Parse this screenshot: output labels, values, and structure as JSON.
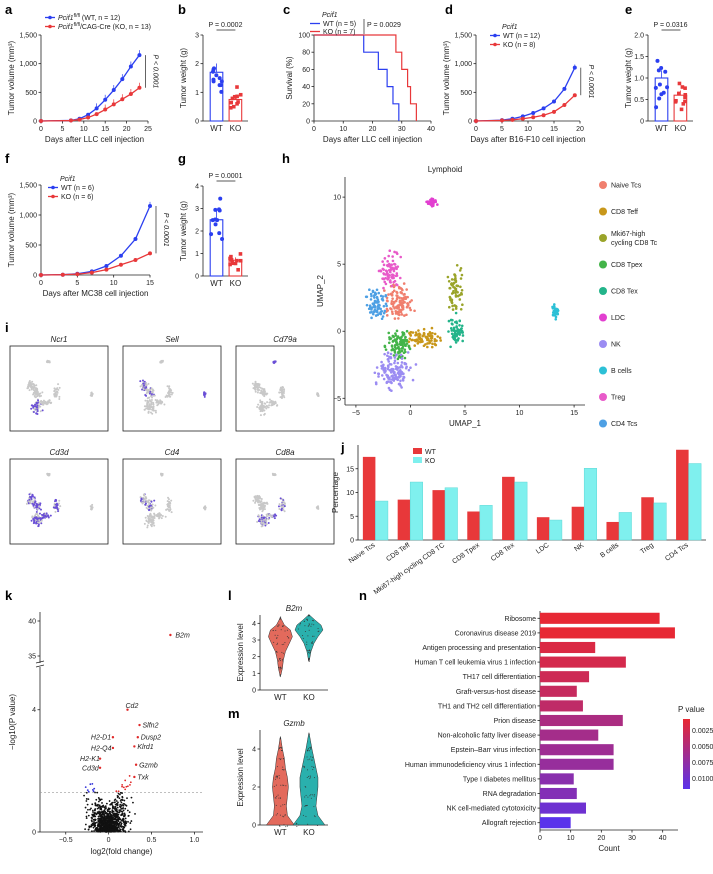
{
  "panel_letters": {
    "a": "a",
    "b": "b",
    "c": "c",
    "d": "d",
    "e": "e",
    "f": "f",
    "g": "g",
    "h": "h",
    "i": "i",
    "j": "j",
    "k": "k",
    "l": "l",
    "m": "m",
    "n": "n"
  },
  "colors": {
    "wt_blue": "#2b3ff0",
    "ko_red": "#e8383a",
    "cyan": "#7ff0ee"
  },
  "chart_data": [
    {
      "id": "a",
      "type": "line",
      "gene": "Pcif1",
      "legend": [
        "Pcif1fl/fl (WT, n = 12)",
        "Pcif1fl/fl/CAG-Cre (KO, n = 13)"
      ],
      "legend_wt_main": "Pcif1",
      "legend_wt_sup": "fl/fl",
      "legend_wt_rest": " (WT, n = 12)",
      "legend_ko_main": "Pcif1",
      "legend_ko_sup": "fl/fl",
      "legend_ko_rest": "/CAG-Cre (KO, n = 13)",
      "xlabel": "Days after LLC cell injection",
      "ylabel": "Tumor volume (mm³)",
      "xlim": [
        0,
        25
      ],
      "ylim": [
        0,
        1500
      ],
      "xticks": [
        "0",
        "5",
        "10",
        "15",
        "20",
        "25"
      ],
      "yticks": [
        "0",
        "500",
        "1,000",
        "1,500"
      ],
      "x": [
        0,
        7,
        9,
        11,
        13,
        15,
        17,
        19,
        21,
        23
      ],
      "series": [
        {
          "name": "WT",
          "values": [
            0,
            10,
            40,
            110,
            220,
            370,
            540,
            730,
            950,
            1150
          ]
        },
        {
          "name": "KO",
          "values": [
            0,
            8,
            25,
            60,
            120,
            200,
            290,
            380,
            470,
            580
          ]
        }
      ],
      "pvalue": "P < 0.0001"
    },
    {
      "id": "b",
      "type": "bar",
      "ylabel": "Tumor weight (g)",
      "categories": [
        "WT",
        "KO"
      ],
      "values": [
        1.7,
        0.75
      ],
      "ylim": [
        0,
        3
      ],
      "yticks": [
        "0",
        "1",
        "2",
        "3"
      ],
      "pvalue": "P = 0.0002"
    },
    {
      "id": "c",
      "type": "line",
      "title": "Pcif1",
      "legend": [
        "WT (n = 5)",
        "KO (n = 7)"
      ],
      "pvalue": "P = 0.0029",
      "xlabel": "Days after LLC cell injection",
      "ylabel": "Survival (%)",
      "xlim": [
        0,
        40
      ],
      "ylim": [
        0,
        100
      ],
      "xticks": [
        "0",
        "10",
        "20",
        "30",
        "40"
      ],
      "yticks": [
        "0",
        "20",
        "40",
        "60",
        "80",
        "100"
      ],
      "series": [
        {
          "name": "WT",
          "steps": [
            [
              0,
              100
            ],
            [
              17,
              100
            ],
            [
              17,
              80
            ],
            [
              22,
              80
            ],
            [
              22,
              60
            ],
            [
              25,
              60
            ],
            [
              25,
              40
            ],
            [
              27,
              40
            ],
            [
              27,
              20
            ],
            [
              29,
              20
            ],
            [
              29,
              0
            ]
          ]
        },
        {
          "name": "KO",
          "steps": [
            [
              0,
              100
            ],
            [
              28,
              100
            ],
            [
              28,
              80
            ],
            [
              30,
              80
            ],
            [
              30,
              60
            ],
            [
              32,
              60
            ],
            [
              32,
              40
            ],
            [
              33,
              40
            ],
            [
              33,
              20
            ],
            [
              35,
              20
            ],
            [
              35,
              0
            ]
          ]
        }
      ]
    },
    {
      "id": "d",
      "type": "line",
      "title": "Pcif1",
      "legend": [
        "WT (n = 12)",
        "KO (n = 8)"
      ],
      "xlabel": "Days after B16-F10 cell injection",
      "ylabel": "Tumor volume (mm³)",
      "xlim": [
        0,
        20
      ],
      "ylim": [
        0,
        1500
      ],
      "xticks": [
        "0",
        "5",
        "10",
        "15",
        "20"
      ],
      "yticks": [
        "0",
        "500",
        "1,000",
        "1,500"
      ],
      "x": [
        0,
        5,
        7,
        9,
        11,
        13,
        15,
        17,
        19
      ],
      "series": [
        {
          "name": "WT",
          "values": [
            0,
            15,
            40,
            80,
            140,
            220,
            340,
            560,
            930
          ]
        },
        {
          "name": "KO",
          "values": [
            0,
            10,
            20,
            40,
            65,
            100,
            160,
            280,
            450
          ]
        }
      ],
      "pvalue": "P < 0.0001"
    },
    {
      "id": "e",
      "type": "bar",
      "ylabel": "Tumor weight (g)",
      "categories": [
        "WT",
        "KO"
      ],
      "values": [
        1.0,
        0.6
      ],
      "ylim": [
        0,
        2
      ],
      "yticks": [
        "0",
        "0.5",
        "1.0",
        "1.5",
        "2.0"
      ],
      "pvalue": "P = 0.0316"
    },
    {
      "id": "f",
      "type": "line",
      "title": "Pcif1",
      "legend": [
        "WT (n = 6)",
        "KO (n = 6)"
      ],
      "xlabel": "Days after MC38 cell injection",
      "ylabel": "Tumor volume (mm³)",
      "xlim": [
        0,
        15
      ],
      "ylim": [
        0,
        1500
      ],
      "xticks": [
        "0",
        "5",
        "10",
        "15"
      ],
      "yticks": [
        "0",
        "500",
        "1,000",
        "1,500"
      ],
      "x": [
        0,
        3,
        5,
        7,
        9,
        11,
        13,
        15
      ],
      "series": [
        {
          "name": "WT",
          "values": [
            0,
            5,
            20,
            60,
            150,
            320,
            600,
            1150
          ]
        },
        {
          "name": "KO",
          "values": [
            0,
            5,
            15,
            40,
            90,
            170,
            250,
            360
          ]
        }
      ],
      "pvalue": "P < 0.0001"
    },
    {
      "id": "g",
      "type": "bar",
      "ylabel": "Tumor weight (g)",
      "categories": [
        "WT",
        "KO"
      ],
      "values": [
        2.5,
        0.7
      ],
      "ylim": [
        0,
        4
      ],
      "yticks": [
        "0",
        "1",
        "2",
        "3",
        "4"
      ],
      "pvalue": "P = 0.0001"
    },
    {
      "id": "h",
      "type": "scatter",
      "title": "Lymphoid",
      "xlabel": "UMAP_1",
      "ylabel": "UMAP_2",
      "xticks": [
        "−5",
        "0",
        "5",
        "10",
        "15"
      ],
      "yticks": [
        "−5",
        "0",
        "5",
        "10"
      ],
      "xlim": [
        -5,
        15
      ],
      "ylim": [
        -5,
        11
      ],
      "legend": [
        "Naive Tcs",
        "CD8 Teff",
        "Mki67-high cycling CD8 Tc",
        "CD8 Tpex",
        "CD8 Tex",
        "LDC",
        "NK",
        "B cells",
        "Treg",
        "CD4 Tcs"
      ]
    },
    {
      "id": "i",
      "type": "scatter",
      "genes": [
        "Ncr1",
        "Sell",
        "Cd79a",
        "Cd3d",
        "Cd4",
        "Cd8a"
      ]
    },
    {
      "id": "j",
      "type": "bar",
      "ylabel": "Percentage",
      "ylim": [
        0,
        20
      ],
      "yticks": [
        "0",
        "5",
        "10",
        "15"
      ],
      "categories": [
        "Naive Tcs",
        "CD8 Teff",
        "Mki67-high cycling CD8 TC",
        "CD8 Tpex",
        "CD8 Tex",
        "LDC",
        "NK",
        "B cells",
        "Treg",
        "CD4 Tcs"
      ],
      "series": [
        {
          "name": "WT",
          "values": [
            17.5,
            8.5,
            10.5,
            6,
            13.3,
            4.8,
            7,
            3.8,
            9,
            19
          ]
        },
        {
          "name": "KO",
          "values": [
            8.2,
            12.2,
            11,
            7.3,
            12.2,
            4.2,
            15.1,
            5.8,
            7.8,
            16.1
          ]
        }
      ]
    },
    {
      "id": "k",
      "type": "scatter",
      "xlabel": "log2(fold change)",
      "ylabel": "−log10(P value)",
      "xticks": [
        "−0.5",
        "0",
        "0.5",
        "1.0"
      ],
      "yticks": [
        "0",
        "4",
        "35",
        "40"
      ],
      "annotations": [
        "B2m",
        "Cd2",
        "Slfn2",
        "Dusp2",
        "Klrd1",
        "Gzmb",
        "Txk",
        "H2-D1",
        "H2-Q4",
        "H2-K1",
        "Cd3d"
      ]
    },
    {
      "id": "l",
      "type": "violin",
      "title": "B2m",
      "ylabel": "Expression level",
      "categories": [
        "WT",
        "KO"
      ],
      "yticks": [
        "0",
        "1",
        "2",
        "3",
        "4"
      ],
      "ylim": [
        0,
        4.5
      ]
    },
    {
      "id": "m",
      "type": "violin",
      "title": "Gzmb",
      "ylabel": "Expression level",
      "categories": [
        "WT",
        "KO"
      ],
      "yticks": [
        "0",
        "2",
        "4"
      ],
      "ylim": [
        0,
        5
      ]
    },
    {
      "id": "n",
      "type": "bar",
      "orientation": "horizontal",
      "xlabel": "Count",
      "xlim": [
        0,
        45
      ],
      "xticks": [
        "0",
        "10",
        "20",
        "30",
        "40"
      ],
      "legend_title": "P value",
      "legend_ticks": [
        "0.0025",
        "0.0050",
        "0.0075",
        "0.0100"
      ],
      "categories": [
        "Ribosome",
        "Coronavirus disease 2019",
        "Antigen processing and presentation",
        "Human T cell leukemia virus 1 infection",
        "TH17 cell differentiation",
        "Graft-versus-host disease",
        "TH1 and TH2 cell differentiation",
        "Prion disease",
        "Non-alcoholic fatty liver disease",
        "Epstein–Barr virus infection",
        "Human immunodeficiency virus 1 infection",
        "Type I diabetes mellitus",
        "RNA degradation",
        "NK cell-mediated cytotoxicity",
        "Allograft rejection"
      ],
      "values": [
        39,
        44,
        18,
        28,
        16,
        12,
        14,
        27,
        19,
        24,
        24,
        11,
        12,
        15,
        10
      ],
      "pvalues": [
        0.0001,
        0.0001,
        0.001,
        0.0015,
        0.002,
        0.0025,
        0.003,
        0.0045,
        0.005,
        0.0055,
        0.006,
        0.007,
        0.0075,
        0.009,
        0.0105
      ]
    }
  ]
}
